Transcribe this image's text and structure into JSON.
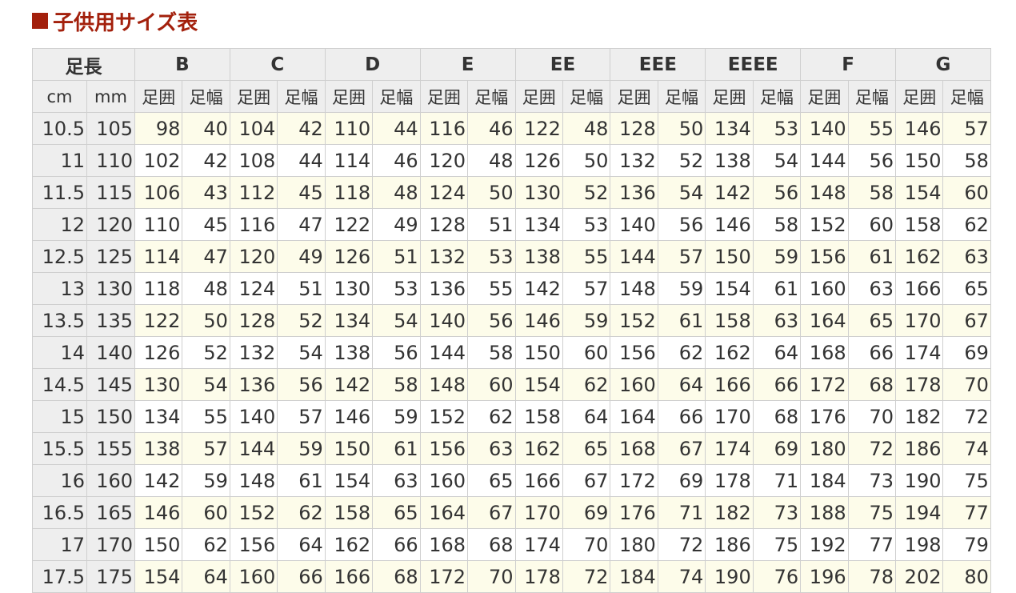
{
  "title": "子供用サイズ表",
  "table": {
    "header_groups": [
      "足長",
      "B",
      "C",
      "D",
      "E",
      "EE",
      "EEE",
      "EEEE",
      "F",
      "G"
    ],
    "subheaders": [
      "cm",
      "mm",
      "足囲",
      "足幅",
      "足囲",
      "足幅",
      "足囲",
      "足幅",
      "足囲",
      "足幅",
      "足囲",
      "足幅",
      "足囲",
      "足幅",
      "足囲",
      "足幅",
      "足囲",
      "足幅",
      "足囲",
      "足幅"
    ],
    "rows": [
      [
        10.5,
        105,
        98,
        40,
        104,
        42,
        110,
        44,
        116,
        46,
        122,
        48,
        128,
        50,
        134,
        53,
        140,
        55,
        146,
        57
      ],
      [
        11,
        110,
        102,
        42,
        108,
        44,
        114,
        46,
        120,
        48,
        126,
        50,
        132,
        52,
        138,
        54,
        144,
        56,
        150,
        58
      ],
      [
        11.5,
        115,
        106,
        43,
        112,
        45,
        118,
        48,
        124,
        50,
        130,
        52,
        136,
        54,
        142,
        56,
        148,
        58,
        154,
        60
      ],
      [
        12,
        120,
        110,
        45,
        116,
        47,
        122,
        49,
        128,
        51,
        134,
        53,
        140,
        56,
        146,
        58,
        152,
        60,
        158,
        62
      ],
      [
        12.5,
        125,
        114,
        47,
        120,
        49,
        126,
        51,
        132,
        53,
        138,
        55,
        144,
        57,
        150,
        59,
        156,
        61,
        162,
        63
      ],
      [
        13,
        130,
        118,
        48,
        124,
        51,
        130,
        53,
        136,
        55,
        142,
        57,
        148,
        59,
        154,
        61,
        160,
        63,
        166,
        65
      ],
      [
        13.5,
        135,
        122,
        50,
        128,
        52,
        134,
        54,
        140,
        56,
        146,
        59,
        152,
        61,
        158,
        63,
        164,
        65,
        170,
        67
      ],
      [
        14,
        140,
        126,
        52,
        132,
        54,
        138,
        56,
        144,
        58,
        150,
        60,
        156,
        62,
        162,
        64,
        168,
        66,
        174,
        69
      ],
      [
        14.5,
        145,
        130,
        54,
        136,
        56,
        142,
        58,
        148,
        60,
        154,
        62,
        160,
        64,
        166,
        66,
        172,
        68,
        178,
        70
      ],
      [
        15,
        150,
        134,
        55,
        140,
        57,
        146,
        59,
        152,
        62,
        158,
        64,
        164,
        66,
        170,
        68,
        176,
        70,
        182,
        72
      ],
      [
        15.5,
        155,
        138,
        57,
        144,
        59,
        150,
        61,
        156,
        63,
        162,
        65,
        168,
        67,
        174,
        69,
        180,
        72,
        186,
        74
      ],
      [
        16,
        160,
        142,
        59,
        148,
        61,
        154,
        63,
        160,
        65,
        166,
        67,
        172,
        69,
        178,
        71,
        184,
        73,
        190,
        75
      ],
      [
        16.5,
        165,
        146,
        60,
        152,
        62,
        158,
        65,
        164,
        67,
        170,
        69,
        176,
        71,
        182,
        73,
        188,
        75,
        194,
        77
      ],
      [
        17,
        170,
        150,
        62,
        156,
        64,
        162,
        66,
        168,
        68,
        174,
        70,
        180,
        72,
        186,
        75,
        192,
        77,
        198,
        79
      ],
      [
        17.5,
        175,
        154,
        64,
        160,
        66,
        166,
        68,
        172,
        70,
        178,
        72,
        184,
        74,
        190,
        76,
        196,
        78,
        202,
        80
      ]
    ]
  }
}
